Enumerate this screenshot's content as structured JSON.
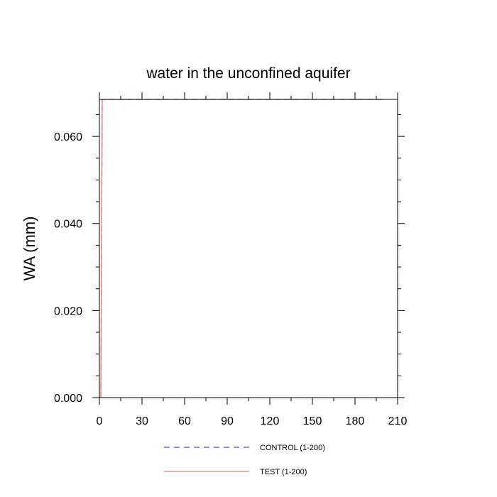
{
  "chart_data": {
    "type": "line",
    "title": "water in the unconfined aquifer",
    "xlabel": "",
    "ylabel": "WA  (mm)",
    "xlim": [
      0,
      210
    ],
    "ylim": [
      0,
      0.0685
    ],
    "xticks": [
      0,
      30,
      60,
      90,
      120,
      150,
      180,
      210
    ],
    "xtick_labels": [
      "0",
      "30",
      "60",
      "90",
      "120",
      "150",
      "180",
      "210"
    ],
    "yticks": [
      0,
      0.02,
      0.04,
      0.06
    ],
    "ytick_labels": [
      "0.000",
      "0.020",
      "0.040",
      "0.060"
    ],
    "grid": false,
    "legend_position": "bottom",
    "series": [
      {
        "name": "CONTROL (1-200)",
        "color": "#4b4bd6",
        "style": "dashed",
        "x": [
          1,
          2,
          200
        ],
        "y": [
          0.0,
          0.0685,
          0.0685
        ]
      },
      {
        "name": "TEST (1-200)",
        "color": "#f07a7a",
        "style": "solid",
        "x": [
          1,
          2,
          200
        ],
        "y": [
          0.0,
          0.0685,
          0.0685
        ]
      }
    ]
  }
}
